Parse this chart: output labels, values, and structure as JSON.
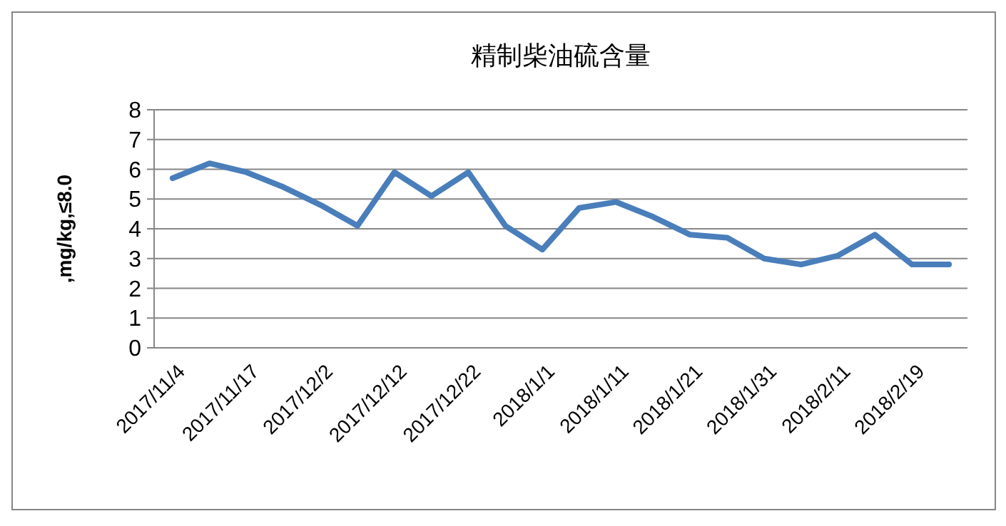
{
  "chart_data": {
    "type": "line",
    "title": "精制柴油硫含量",
    "ylabel": ",mg/kg,≤8.0",
    "categories": [
      "2017/11/4",
      null,
      "2017/11/17",
      null,
      "2017/12/2",
      null,
      "2017/12/12",
      null,
      "2017/12/22",
      null,
      "2018/1/1",
      null,
      "2018/1/11",
      null,
      "2018/1/21",
      null,
      "2018/1/31",
      null,
      "2018/2/11",
      null,
      "2018/2/19",
      null
    ],
    "series": [
      {
        "color": "#4a7ebb",
        "values": [
          5.7,
          6.2,
          5.9,
          5.4,
          4.8,
          4.1,
          5.9,
          5.1,
          5.9,
          4.1,
          3.3,
          4.7,
          4.9,
          4.4,
          3.8,
          3.7,
          3.0,
          2.8,
          3.1,
          3.8,
          2.8,
          2.8
        ]
      }
    ],
    "ylim": [
      0,
      8
    ],
    "yticks": [
      0,
      1,
      2,
      3,
      4,
      5,
      6,
      7,
      8
    ],
    "grid": "y",
    "marker": "none",
    "line_style": "solid"
  }
}
